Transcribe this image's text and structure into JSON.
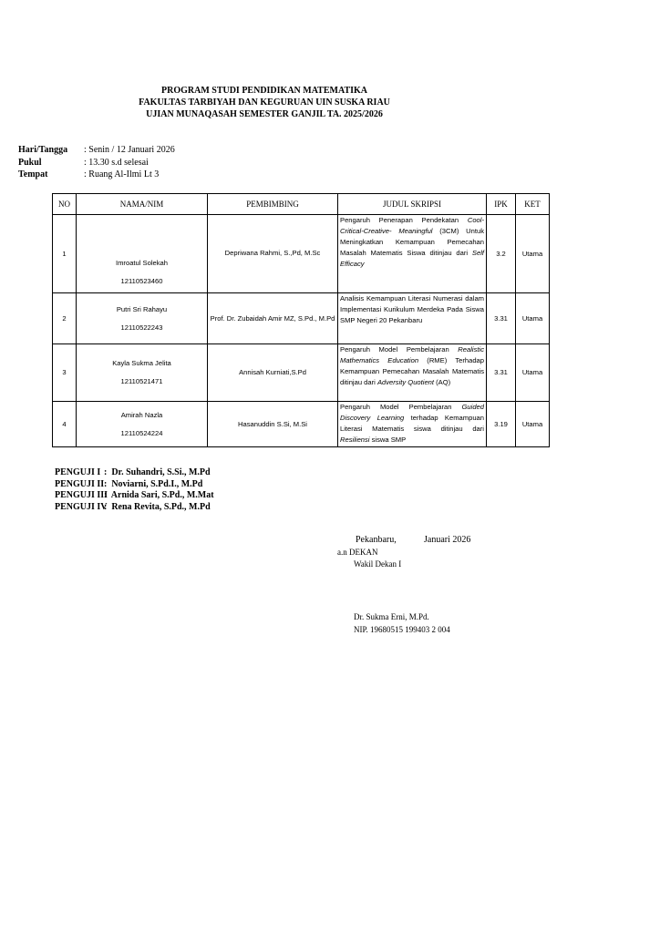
{
  "header": {
    "lines": [
      "PROGRAM STUDI PENDIDIKAN MATEMATIKA",
      "FAKULTAS TARBIYAH DAN KEGURUAN UIN SUSKA RIAU",
      "UJIAN MUNAQASAH SEMESTER GANJIL TA. 2025/2026"
    ]
  },
  "info": [
    {
      "label": "Hari/Tangga",
      "value": ": Senin / 12 Januari 2026"
    },
    {
      "label": "Pukul",
      "value": ": 13.30 s.d selesai"
    },
    {
      "label": "Tempat",
      "value": ": Ruang Al-Ilmi Lt 3"
    }
  ],
  "table": {
    "columns": [
      "NO",
      "NAMA/NIM",
      "PEMBIMBING",
      "JUDUL SKRIPSI",
      "IPK",
      "KET"
    ],
    "rows": [
      {
        "no": "1",
        "nama": "Imroatul Solekah",
        "nim": "12110523460",
        "pembimbing": "Depriwana Rahmi, S.,Pd, M.Sc",
        "judul": [
          {
            "text": "Pengaruh Penerapan Pendekatan "
          },
          {
            "text": "Cool-Critical-Creative- Meaningful",
            "italic": true
          },
          {
            "text": " (3CM) Untuk Meningkatkan Kemampuan Pemecahan Masalah Matematis Siswa ditinjau dari "
          },
          {
            "text": "Self Efficacy",
            "italic": true
          }
        ],
        "ipk": 3.2,
        "ket": "Utama"
      },
      {
        "no": "2",
        "nama": "Putri Sri Rahayu",
        "nim": "12110522243",
        "pembimbing": "Prof. Dr. Zubaidah Amir MZ, S.Pd., M.Pd",
        "judul": [
          {
            "text": "Analisis Kemampuan Literasi Numerasi dalam Implementasi Kurikulum Merdeka Pada Siswa SMP Negeri 20 Pekanbaru"
          }
        ],
        "ipk": 3.31,
        "ket": "Utama"
      },
      {
        "no": "3",
        "nama": "Kayla Sukma Jelita",
        "nim": "12110521471",
        "pembimbing": "Annisah Kurniati,S.Pd",
        "judul": [
          {
            "text": "Pengaruh Model Pembelajaran "
          },
          {
            "text": "Realistic Mathematics Education",
            "italic": true
          },
          {
            "text": " (RME) Terhadap Kemampuan Pemecahan Masalah Matematis ditinjau dari "
          },
          {
            "text": "Adversity Quotient",
            "italic": true
          },
          {
            "text": " (AQ)"
          }
        ],
        "ipk": 3.31,
        "ket": "Utama"
      },
      {
        "no": "4",
        "nama": "Amirah Nazla",
        "nim": "12110524224",
        "pembimbing": "Hasanuddin S.Si, M.Si",
        "judul": [
          {
            "text": "Pengaruh Model Pembelajaran "
          },
          {
            "text": "Guided Discovery Learning",
            "italic": true
          },
          {
            "text": " terhadap Kemampuan Literasi Matematis siswa ditinjau dari "
          },
          {
            "text": "Resiliensi",
            "italic": true
          },
          {
            "text": " siswa SMP"
          }
        ],
        "ipk": 3.19,
        "ket": "Utama"
      }
    ]
  },
  "penguji": [
    {
      "label": "PENGUJI I",
      "name": ":  Dr. Suhandri, S.Si., M.Pd"
    },
    {
      "label": "PENGUJI II",
      "name": ":  Noviarni, S.Pd.I., M.Pd"
    },
    {
      "label": "PENGUJI III",
      "name": ":  Arnida Sari, S.Pd., M.Mat"
    },
    {
      "label": "PENGUJI IV",
      "name": ":  Rena Revita, S.Pd., M.Pd"
    }
  ],
  "signature": {
    "place": "Pekanbaru,",
    "date": "Januari 2026",
    "an": "a.n DEKAN",
    "role": "Wakil Dekan I",
    "name": "Dr. Sukma Erni, M.Pd.",
    "nip": "NIP. 19680515 199403 2 004"
  }
}
